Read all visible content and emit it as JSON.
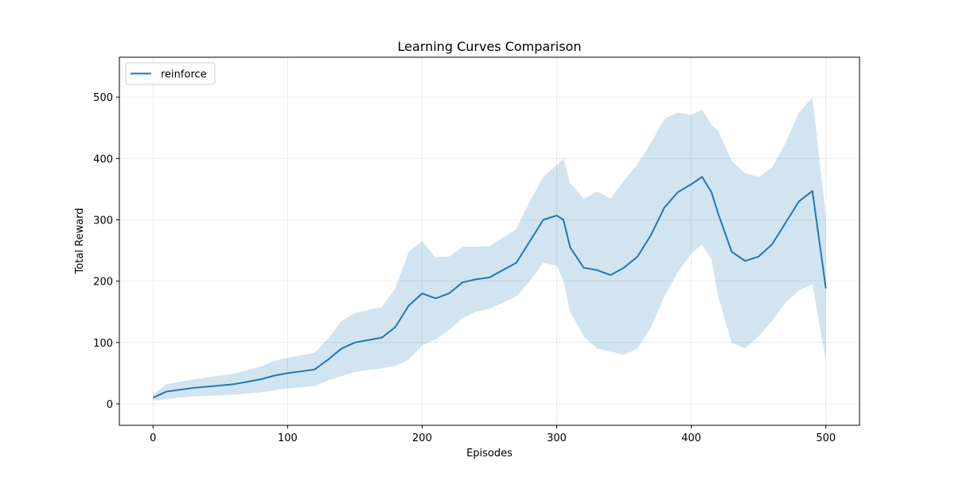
{
  "chart_data": {
    "type": "line",
    "title": "Learning Curves Comparison",
    "xlabel": "Episodes",
    "ylabel": "Total Reward",
    "xlim": [
      -25,
      525
    ],
    "ylim": [
      -35,
      565
    ],
    "xticks": [
      0,
      100,
      200,
      300,
      400,
      500
    ],
    "yticks": [
      0,
      100,
      200,
      300,
      400,
      500
    ],
    "grid": true,
    "legend_position": "top-left",
    "series": [
      {
        "name": "reinforce",
        "color": "#1f77b4",
        "band_color": "#1f77b4",
        "x": [
          0,
          10,
          20,
          30,
          40,
          50,
          60,
          70,
          80,
          90,
          100,
          110,
          120,
          130,
          140,
          150,
          160,
          170,
          180,
          190,
          200,
          210,
          220,
          230,
          240,
          250,
          260,
          270,
          280,
          290,
          300,
          305,
          310,
          320,
          330,
          340,
          350,
          360,
          370,
          380,
          390,
          400,
          408,
          415,
          420,
          430,
          440,
          450,
          460,
          470,
          480,
          490,
          500
        ],
        "y": [
          10,
          20,
          23,
          26,
          28,
          30,
          32,
          36,
          40,
          46,
          50,
          53,
          56,
          72,
          90,
          100,
          104,
          108,
          125,
          160,
          180,
          172,
          180,
          198,
          203,
          206,
          218,
          230,
          265,
          300,
          307,
          300,
          255,
          222,
          218,
          210,
          222,
          240,
          275,
          320,
          345,
          358,
          370,
          345,
          310,
          248,
          233,
          240,
          260,
          295,
          330,
          347,
          188
        ],
        "lower": [
          5,
          8,
          10,
          12,
          13,
          14,
          15,
          17,
          19,
          22,
          25,
          27,
          29,
          38,
          45,
          52,
          55,
          58,
          62,
          72,
          95,
          105,
          120,
          140,
          150,
          155,
          165,
          175,
          200,
          230,
          225,
          200,
          150,
          110,
          90,
          85,
          80,
          90,
          125,
          175,
          215,
          245,
          260,
          235,
          175,
          100,
          90,
          110,
          135,
          165,
          185,
          195,
          70
        ],
        "upper": [
          15,
          32,
          36,
          40,
          43,
          46,
          49,
          55,
          61,
          70,
          75,
          79,
          83,
          106,
          135,
          148,
          153,
          158,
          188,
          248,
          265,
          239,
          240,
          256,
          256,
          257,
          271,
          285,
          330,
          370,
          389,
          400,
          360,
          334,
          346,
          335,
          364,
          390,
          425,
          465,
          475,
          471,
          480,
          455,
          445,
          396,
          376,
          370,
          385,
          425,
          475,
          499,
          306
        ]
      }
    ]
  }
}
